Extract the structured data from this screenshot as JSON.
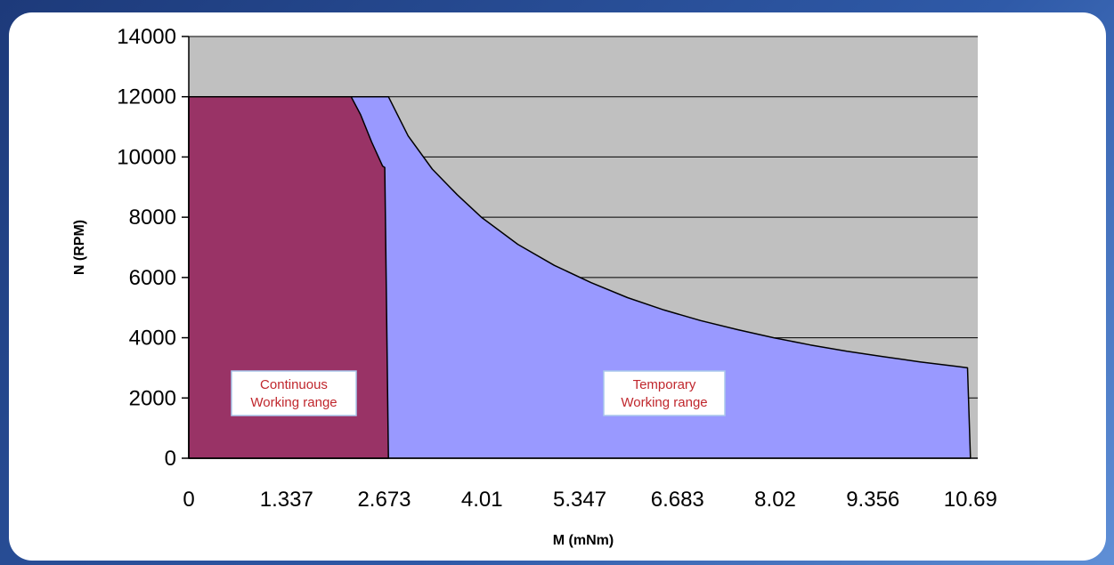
{
  "chart_data": {
    "type": "area",
    "xlabel": "M (mNm)",
    "ylabel": "N (RPM)",
    "xlim": [
      0,
      10.79
    ],
    "ylim": [
      0,
      14000
    ],
    "x_ticks": [
      "0",
      "1.337",
      "2.673",
      "4.01",
      "5.347",
      "6.683",
      "8.02",
      "9.356",
      "10.69"
    ],
    "x_tick_values": [
      0,
      1.337,
      2.673,
      4.01,
      5.347,
      6.683,
      8.02,
      9.356,
      10.69
    ],
    "y_ticks": [
      "0",
      "2000",
      "4000",
      "6000",
      "8000",
      "10000",
      "12000",
      "14000"
    ],
    "y_tick_values": [
      0,
      2000,
      4000,
      6000,
      8000,
      10000,
      12000,
      14000
    ],
    "grid": true,
    "series": [
      {
        "name": "Temporary Working range",
        "color": "#9999ff",
        "points": [
          [
            0,
            12000
          ],
          [
            2.73,
            12000
          ],
          [
            3.0,
            10700
          ],
          [
            3.33,
            9600
          ],
          [
            3.67,
            8750
          ],
          [
            4.0,
            8000
          ],
          [
            4.5,
            7100
          ],
          [
            5.0,
            6400
          ],
          [
            5.5,
            5830
          ],
          [
            6.0,
            5330
          ],
          [
            6.5,
            4920
          ],
          [
            7.0,
            4570
          ],
          [
            7.5,
            4270
          ],
          [
            8.0,
            4000
          ],
          [
            8.5,
            3760
          ],
          [
            9.0,
            3550
          ],
          [
            9.5,
            3370
          ],
          [
            10.0,
            3200
          ],
          [
            10.5,
            3050
          ],
          [
            10.65,
            3000
          ],
          [
            10.69,
            0
          ],
          [
            0,
            0
          ]
        ],
        "label": [
          "Temporary",
          "Working range"
        ]
      },
      {
        "name": "Continuous Working range",
        "color": "#993366",
        "points": [
          [
            0,
            12000
          ],
          [
            2.22,
            12000
          ],
          [
            2.35,
            11400
          ],
          [
            2.5,
            10500
          ],
          [
            2.65,
            9700
          ],
          [
            2.68,
            9650
          ],
          [
            2.73,
            0
          ],
          [
            0,
            0
          ]
        ],
        "label": [
          "Continuous",
          "Working range"
        ]
      }
    ],
    "plot_background": "#c0c0c0"
  }
}
